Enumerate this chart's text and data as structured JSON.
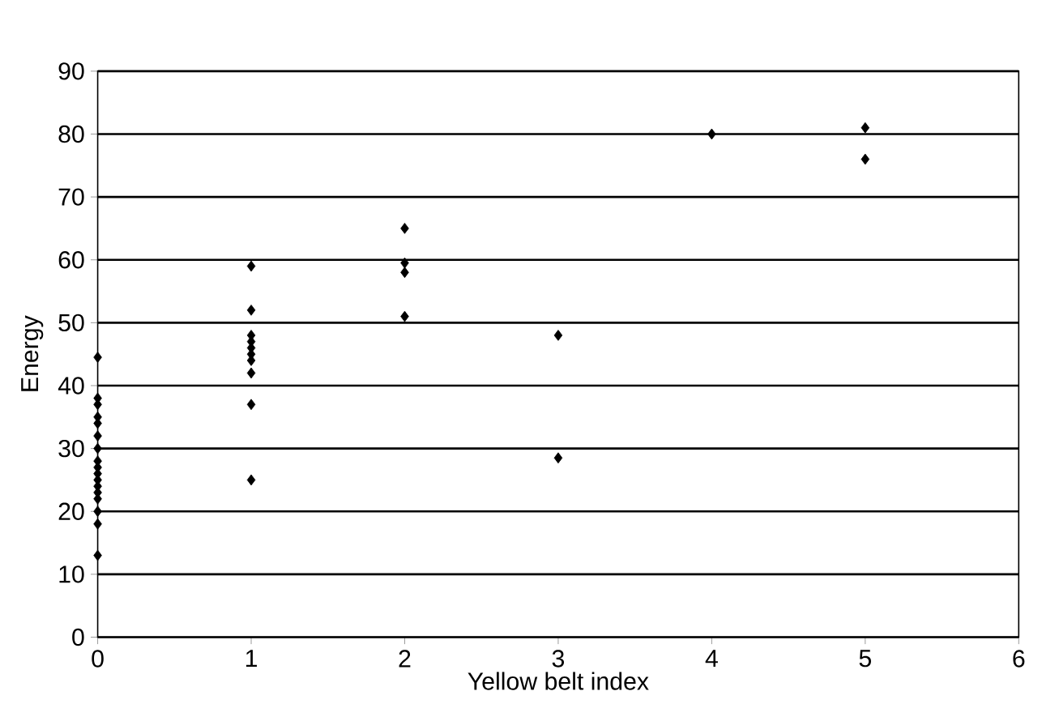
{
  "chart_data": {
    "type": "scatter",
    "xlabel": "Yellow belt index",
    "ylabel": "Energy",
    "x": [
      0,
      0,
      0,
      0,
      0,
      0,
      0,
      0,
      0,
      0,
      0,
      0,
      0,
      0,
      0,
      0,
      0,
      1,
      1,
      1,
      1,
      1,
      1,
      1,
      1,
      1,
      1,
      2,
      2,
      2,
      2,
      3,
      3,
      4,
      5,
      5
    ],
    "values": [
      44.5,
      38,
      37,
      35,
      34,
      32,
      30,
      28,
      27,
      26,
      25,
      24,
      23,
      22,
      20,
      18,
      13,
      59,
      52,
      48,
      47,
      46,
      45,
      44,
      42,
      37,
      25,
      65,
      59.5,
      58,
      51,
      48,
      28.5,
      80,
      81,
      76
    ],
    "color": "#000000",
    "marker": "diamond",
    "grid": "y",
    "xlim": [
      0,
      6
    ],
    "ylim": [
      0,
      90
    ],
    "xticks": [
      0,
      1,
      2,
      3,
      4,
      5,
      6
    ],
    "yticks": [
      0,
      10,
      20,
      30,
      40,
      50,
      60,
      70,
      80,
      90
    ]
  }
}
